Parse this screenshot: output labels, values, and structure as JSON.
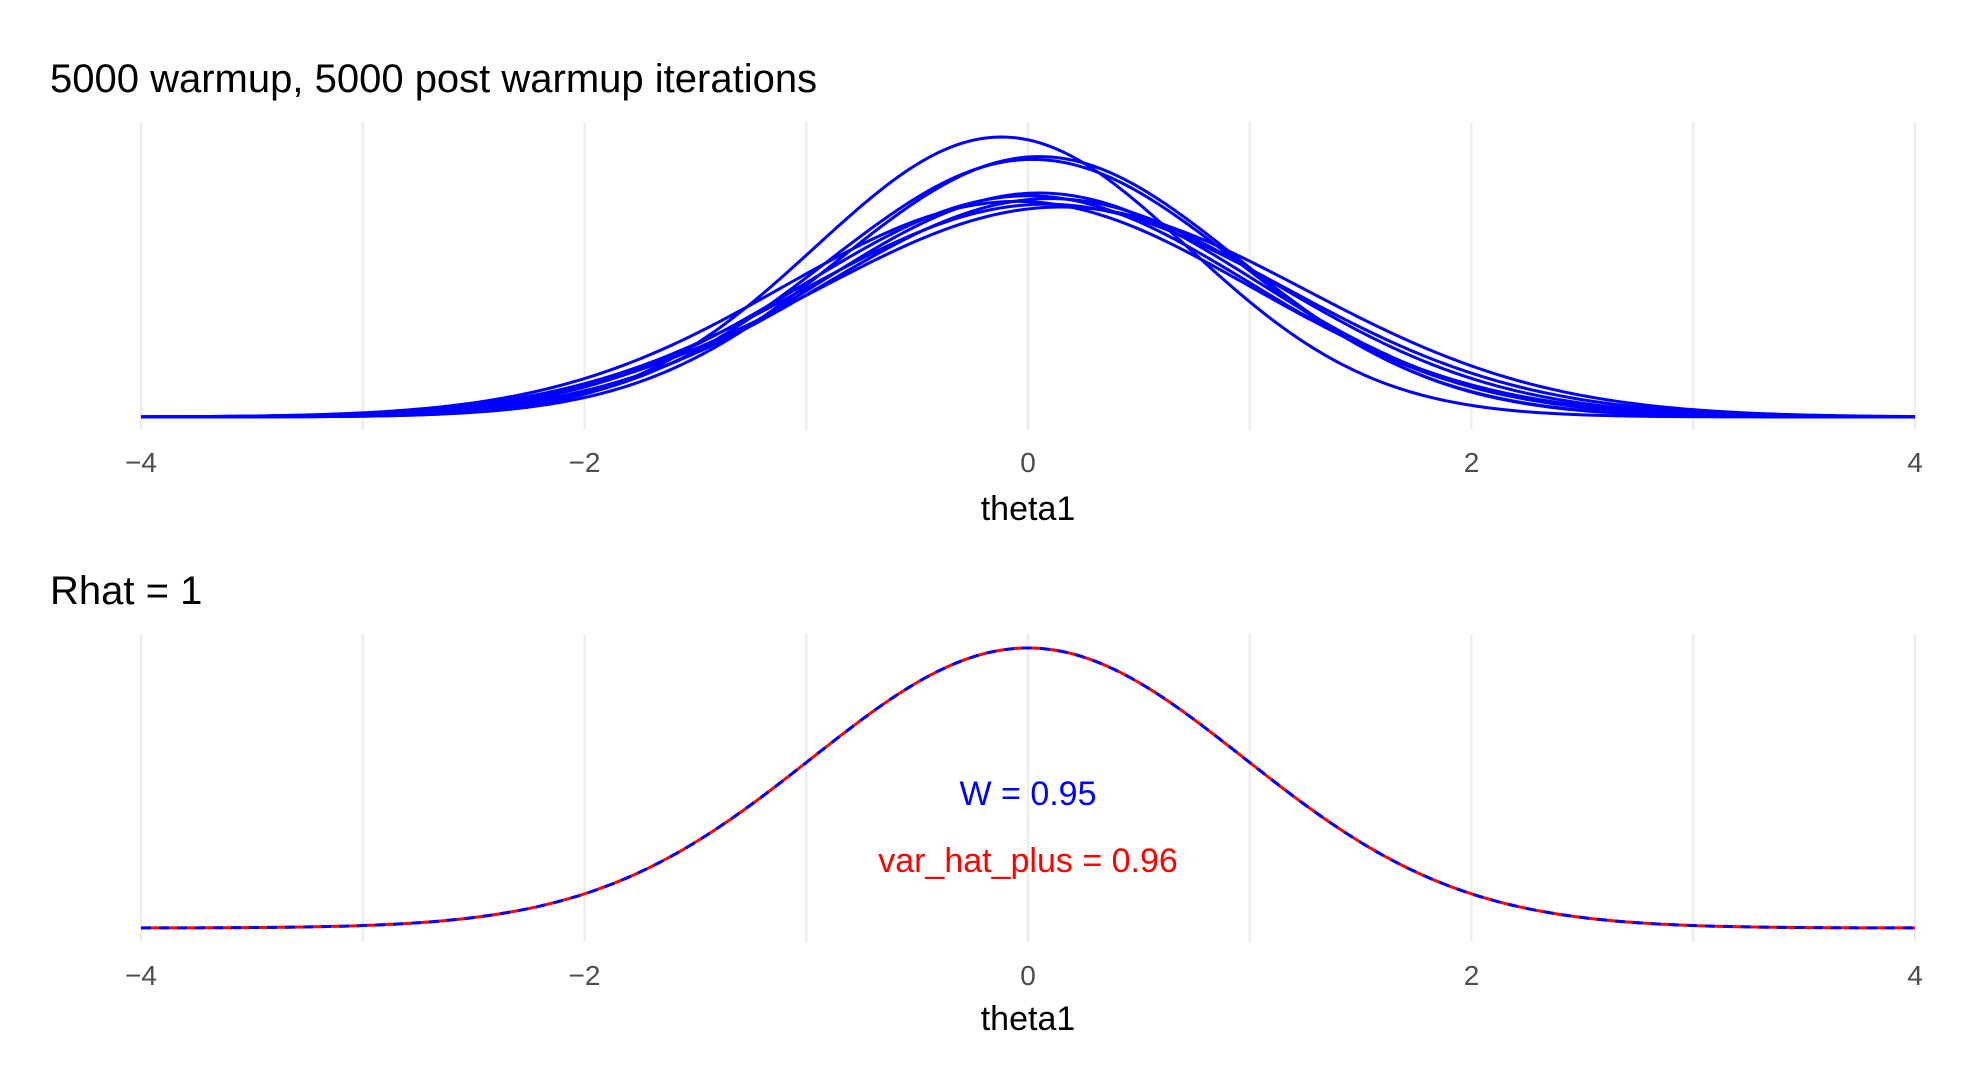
{
  "chart_data": [
    {
      "type": "line",
      "title": "5000  warmup,  5000 post warmup iterations",
      "xlabel": "theta1",
      "ylabel": "",
      "xlim": [
        -4,
        4
      ],
      "x_ticks": [
        -4,
        -2,
        0,
        2,
        4
      ],
      "x_tick_labels": [
        "−4",
        "−2",
        "0",
        "2",
        "4"
      ],
      "grid": "vertical major and minor",
      "line_color": "#0000ff",
      "series_kind": "density curves, one per chain",
      "series": [
        {
          "mean": -0.12,
          "sd": 0.84,
          "peak": 1.0
        },
        {
          "mean": 0.05,
          "sd": 0.9,
          "peak": 0.93
        },
        {
          "mean": 0.02,
          "sd": 0.92,
          "peak": 0.92
        },
        {
          "mean": 0.0,
          "sd": 1.0,
          "peak": 0.79
        },
        {
          "mean": 0.05,
          "sd": 0.98,
          "peak": 0.8
        },
        {
          "mean": 0.1,
          "sd": 1.02,
          "peak": 0.78
        },
        {
          "mean": -0.05,
          "sd": 1.05,
          "peak": 0.77
        },
        {
          "mean": 0.08,
          "sd": 1.08,
          "peak": 0.76
        },
        {
          "mean": 0.15,
          "sd": 1.1,
          "peak": 0.75
        }
      ]
    },
    {
      "type": "line",
      "title": "Rhat =  1",
      "xlabel": "theta1",
      "ylabel": "",
      "xlim": [
        -4,
        4
      ],
      "x_ticks": [
        -4,
        -2,
        0,
        2,
        4
      ],
      "x_tick_labels": [
        "−4",
        "−2",
        "0",
        "2",
        "4"
      ],
      "grid": "vertical major and minor",
      "series": [
        {
          "mean": 0.0,
          "sd": 0.975,
          "peak": 1.0,
          "color": "#ff0000",
          "style": "solid"
        },
        {
          "mean": 0.0,
          "sd": 0.975,
          "peak": 1.0,
          "color": "#0000ff",
          "style": "dashed"
        }
      ],
      "annotations": [
        {
          "text": "W =  0.95",
          "color": "#0000ff",
          "x": 0,
          "y": 0.48
        },
        {
          "text": "var_hat_plus =  0.96",
          "color": "#ff0000",
          "x": 0,
          "y": 0.23
        }
      ]
    }
  ]
}
